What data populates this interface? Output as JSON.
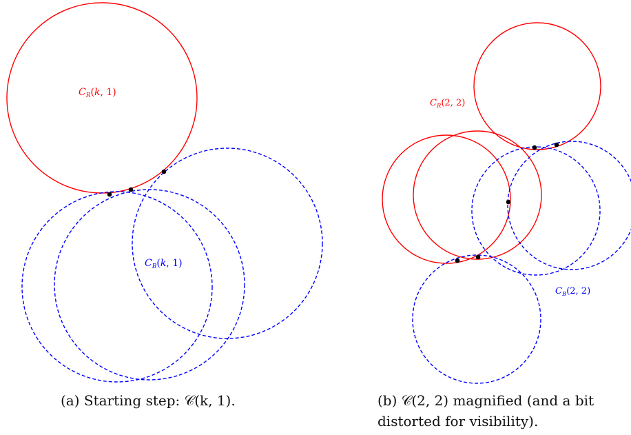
{
  "colors": {
    "red": "#ff0000",
    "blue": "#0000ff",
    "point": "#000000"
  },
  "panel_a": {
    "red_label": "C_R(k,1)",
    "blue_label": "C_B(k,1)",
    "caption": "(a) Starting step: 𝒞(k, 1)."
  },
  "panel_b": {
    "red_label": "C_R(2,2)",
    "blue_label": "C_B(2,2)",
    "caption": "(b) 𝒞(2, 2) magnified (and a bit distorted for visibility)."
  }
}
